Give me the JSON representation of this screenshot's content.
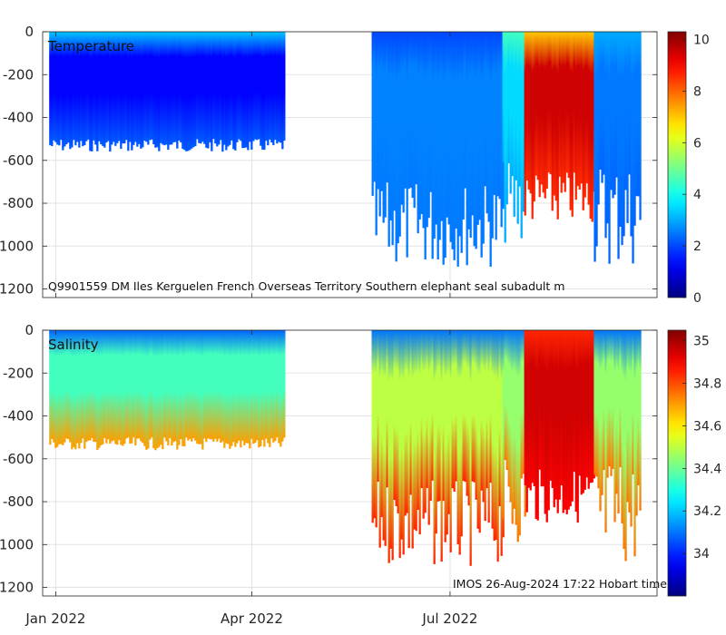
{
  "chart_data": [
    {
      "type": "heatmap",
      "title": "Temperature",
      "annotation": "Q9901559 DM Iles Kerguelen French Overseas Territory Southern elephant seal subadult m",
      "x": {
        "type": "date",
        "ticks": [
          "2022-01-01",
          "2022-04-01",
          "2022-07-01"
        ],
        "tick_labels": [
          "Jan 2022",
          "Apr 2022",
          "Jul 2022"
        ],
        "range": [
          "2021-12-26",
          "2022-10-04"
        ]
      },
      "y": {
        "ticks": [
          0,
          -200,
          -400,
          -600,
          -800,
          -1000,
          -1200
        ],
        "tick_labels": [
          "0",
          "-200",
          "-400",
          "-600",
          "-800",
          "-1000",
          "-1200"
        ],
        "range": [
          -1240,
          0
        ]
      },
      "colorbar": {
        "range": [
          0,
          10.3
        ],
        "ticks": [
          0,
          2,
          4,
          6,
          8,
          10
        ],
        "tick_labels": [
          "0",
          "2",
          "4",
          "6",
          "8",
          "10"
        ]
      },
      "grid": true,
      "segments": [
        {
          "start": "2021-12-29",
          "end": "2022-04-16",
          "max_depth": [
            -500,
            -560
          ],
          "surface": 3.3,
          "mid": 1.3,
          "deep": 2.2
        },
        {
          "start": "2022-05-26",
          "end": "2022-07-25",
          "max_depth": [
            -700,
            -1100
          ],
          "surface": 2.0,
          "mid": 2.6,
          "deep": 2.5
        },
        {
          "start": "2022-07-25",
          "end": "2022-08-04",
          "max_depth": [
            -600,
            -1000
          ],
          "surface": 4.5,
          "mid": 3.5,
          "deep": 3.0
        },
        {
          "start": "2022-08-04",
          "end": "2022-09-05",
          "max_depth": [
            -650,
            -900
          ],
          "surface": 7.0,
          "mid": 9.5,
          "deep": 8.6
        },
        {
          "start": "2022-09-05",
          "end": "2022-09-26",
          "max_depth": [
            -600,
            -1100
          ],
          "surface": 3.0,
          "mid": 2.5,
          "deep": 2.3
        }
      ]
    },
    {
      "type": "heatmap",
      "title": "Salinity",
      "annotation": "IMOS 26-Aug-2024 17:22 Hobart time",
      "x": {
        "type": "date",
        "ticks": [
          "2022-01-01",
          "2022-04-01",
          "2022-07-01"
        ],
        "tick_labels": [
          "Jan 2022",
          "Apr 2022",
          "Jul 2022"
        ],
        "range": [
          "2021-12-26",
          "2022-10-04"
        ]
      },
      "y": {
        "ticks": [
          0,
          -200,
          -400,
          -600,
          -800,
          -1000,
          -1200
        ],
        "tick_labels": [
          "0",
          "-200",
          "-400",
          "-600",
          "-800",
          "-1000",
          "-1200"
        ],
        "range": [
          -1240,
          0
        ]
      },
      "colorbar": {
        "range": [
          33.8,
          35.05
        ],
        "ticks": [
          34,
          34.2,
          34.4,
          34.6,
          34.8,
          35
        ],
        "tick_labels": [
          "34",
          "34.2",
          "34.4",
          "34.6",
          "34.8",
          "35"
        ]
      },
      "grid": true,
      "segments": [
        {
          "start": "2021-12-29",
          "end": "2022-04-16",
          "max_depth": [
            -500,
            -560
          ],
          "surface": 34.08,
          "mid": 34.35,
          "deep": 34.7
        },
        {
          "start": "2022-05-26",
          "end": "2022-07-25",
          "max_depth": [
            -700,
            -1100
          ],
          "surface": 34.1,
          "mid": 34.5,
          "deep": 34.85
        },
        {
          "start": "2022-07-25",
          "end": "2022-08-04",
          "max_depth": [
            -600,
            -1000
          ],
          "surface": 34.1,
          "mid": 34.45,
          "deep": 34.75
        },
        {
          "start": "2022-08-04",
          "end": "2022-09-05",
          "max_depth": [
            -650,
            -900
          ],
          "surface": 34.85,
          "mid": 34.95,
          "deep": 34.9
        },
        {
          "start": "2022-09-05",
          "end": "2022-09-26",
          "max_depth": [
            -600,
            -1100
          ],
          "surface": 34.1,
          "mid": 34.45,
          "deep": 34.75
        }
      ]
    }
  ]
}
